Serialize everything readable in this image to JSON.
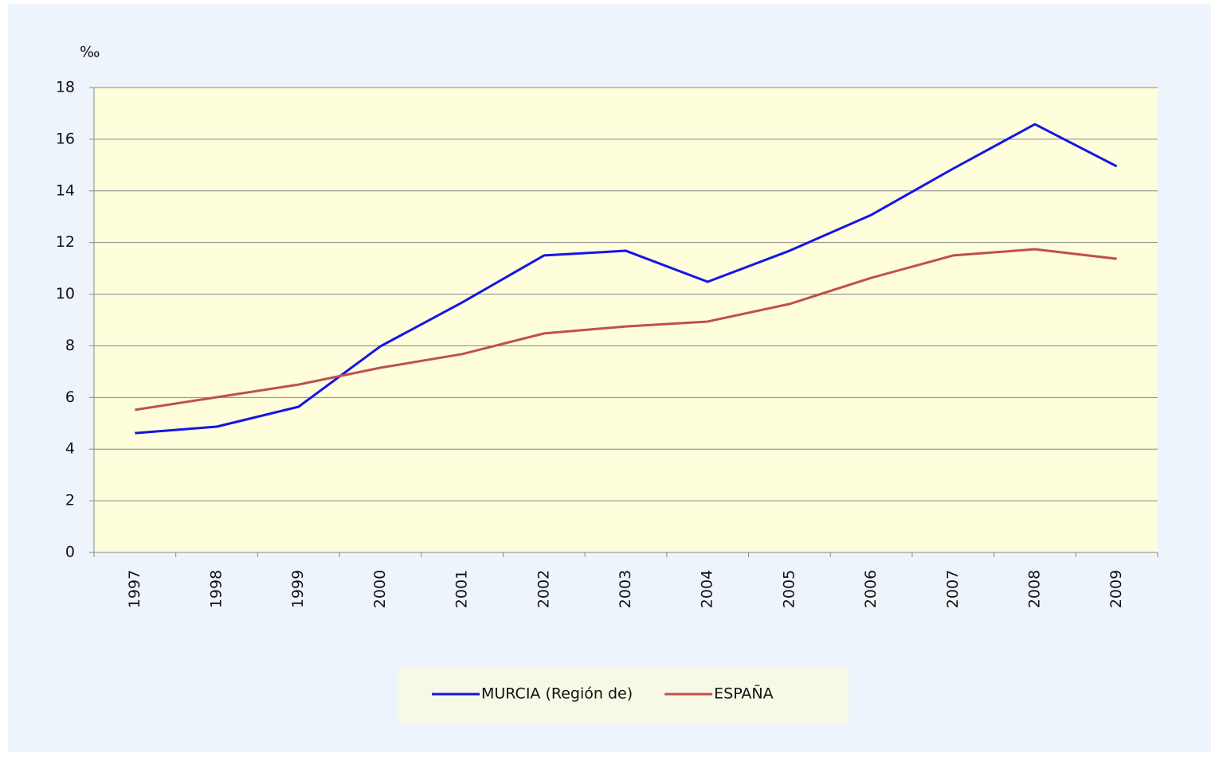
{
  "chart_data": {
    "type": "line",
    "y_label": "‰",
    "categories": [
      "1997",
      "1998",
      "1999",
      "2000",
      "2001",
      "2002",
      "2003",
      "2004",
      "2005",
      "2006",
      "2007",
      "2008",
      "2009"
    ],
    "series": [
      {
        "name": "MURCIA (Región de)",
        "color": "#1515e6",
        "values": [
          4.62,
          4.87,
          5.64,
          7.98,
          9.68,
          11.5,
          11.68,
          10.48,
          11.68,
          13.07,
          14.86,
          16.58,
          14.95
        ]
      },
      {
        "name": "ESPAÑA",
        "color": "#c0504d",
        "values": [
          5.52,
          6.01,
          6.5,
          7.15,
          7.68,
          8.48,
          8.75,
          8.94,
          9.62,
          10.63,
          11.5,
          11.74,
          11.37
        ]
      }
    ],
    "ylim": [
      0,
      18
    ],
    "yticks": [
      0,
      2,
      4,
      6,
      8,
      10,
      12,
      14,
      16,
      18
    ],
    "grid": true,
    "legend": "bottom"
  }
}
